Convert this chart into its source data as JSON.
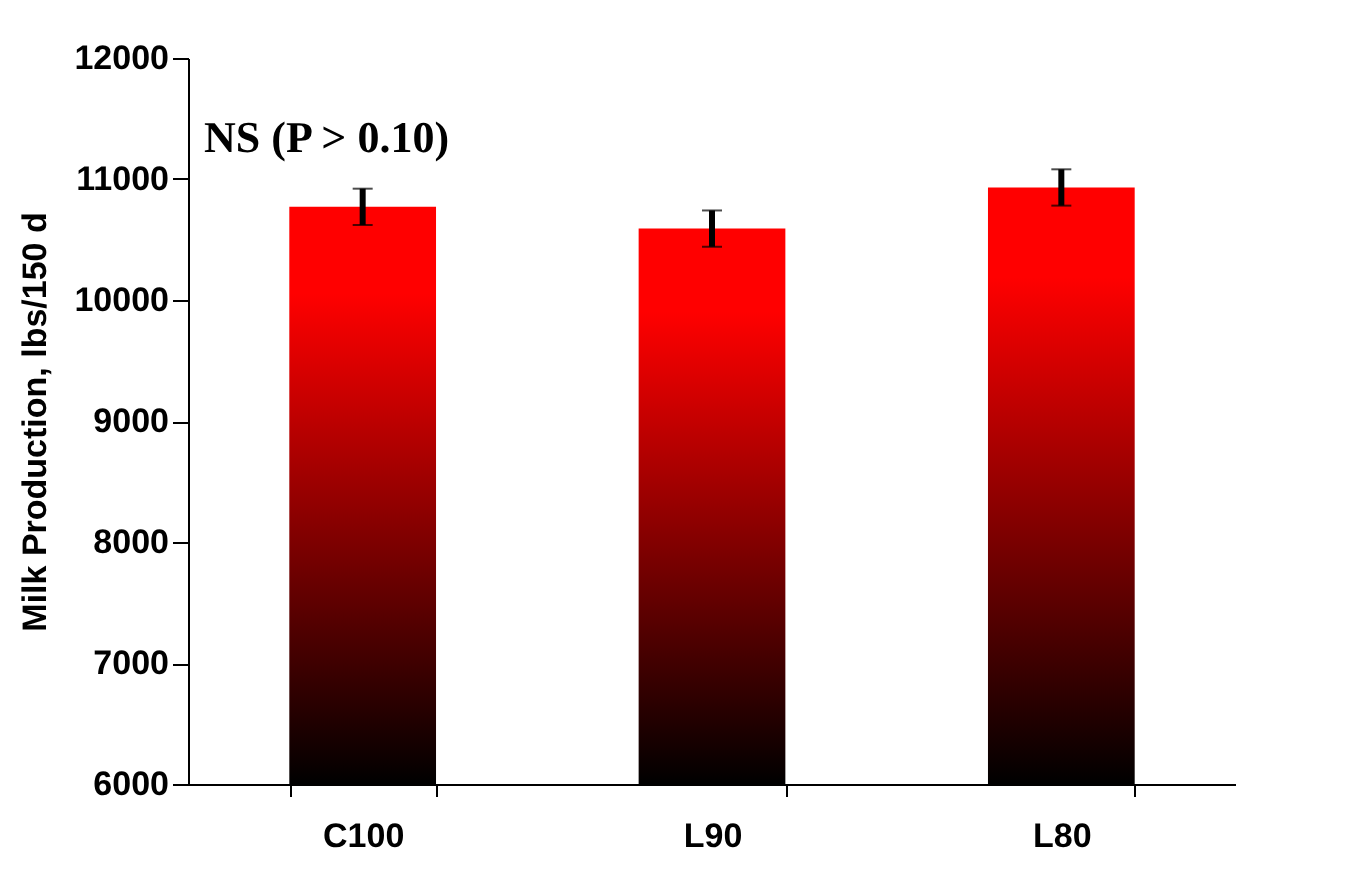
{
  "chart_data": {
    "type": "bar",
    "ylabel": "Milk Production, lbs/150 d",
    "categories": [
      "C100",
      "L90",
      "L80"
    ],
    "values": [
      10770,
      10590,
      10930
    ],
    "errors": [
      150,
      150,
      150
    ],
    "color": "#ff0000",
    "ylim": [
      6000,
      12000
    ],
    "yticks": [
      6000,
      7000,
      8000,
      9000,
      10000,
      11000,
      12000
    ],
    "annotations": [
      "NS (P > 0.10)"
    ]
  }
}
